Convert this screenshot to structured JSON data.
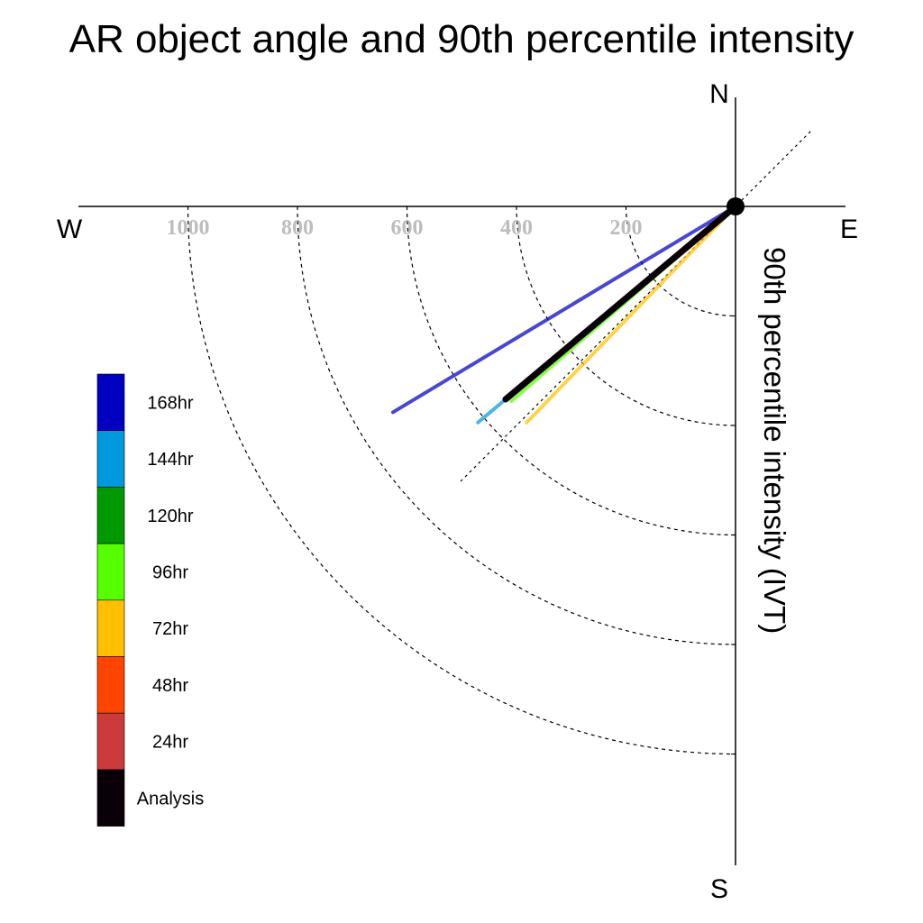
{
  "chart_data": {
    "type": "polar-vector",
    "title": "AR object angle and 90th percentile intensity",
    "ylabel": "90th percentile intensity (IVT)",
    "compass": {
      "north": "N",
      "south": "S",
      "east": "E",
      "west": "W"
    },
    "radial_ticks": [
      200,
      400,
      600,
      800,
      1000
    ],
    "radial_tick_labels": [
      "200",
      "400",
      "600",
      "800",
      "1000"
    ],
    "rmax": 1200,
    "series": [
      {
        "name": "168hr",
        "color": "#0000c0",
        "angle_deg": 211,
        "intensity": 730
      },
      {
        "name": "144hr",
        "color": "#0099dd",
        "angle_deg": 220,
        "intensity": 614
      },
      {
        "name": "120hr",
        "color": "#009900",
        "angle_deg": 220,
        "intensity": 550
      },
      {
        "name": "96hr",
        "color": "#55ff00",
        "angle_deg": 221,
        "intensity": 542
      },
      {
        "name": "72hr",
        "color": "#ffc000",
        "angle_deg": 226,
        "intensity": 549
      },
      {
        "name": "48hr",
        "color": "#ff4400",
        "angle_deg": null,
        "intensity": null
      },
      {
        "name": "24hr",
        "color": "#cc3b3b",
        "angle_deg": null,
        "intensity": null
      },
      {
        "name": "Analysis",
        "color": "#0a0008",
        "angle_deg": 220,
        "intensity": 548
      }
    ]
  }
}
